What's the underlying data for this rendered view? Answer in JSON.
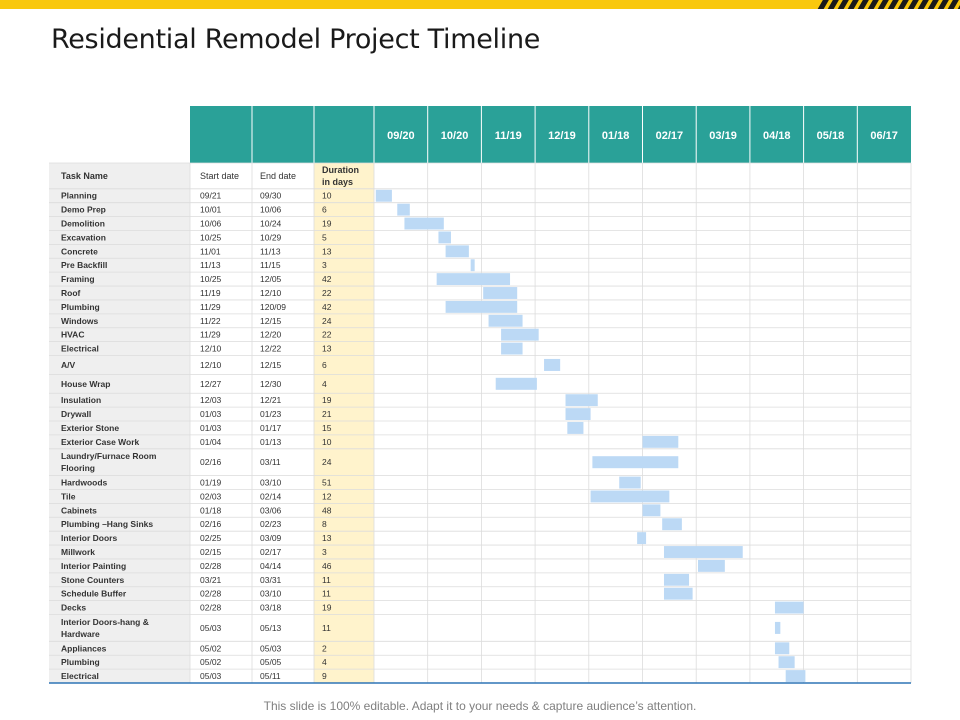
{
  "page": {
    "title": "Residential Remodel Project Timeline",
    "footer": "This slide is 100% editable. Adapt it to your needs & capture audience’s attention."
  },
  "colors": {
    "accent_yellow": "#f9c80e",
    "header_teal": "#2aa198",
    "bar_blue": "#bcd9f5",
    "duration_bg": "#fff3cc",
    "task_bg": "#efefef",
    "border_blue": "#2e75b6"
  },
  "chart_data": {
    "type": "gantt",
    "title": "Residential Remodel Project Timeline",
    "table_headers": {
      "task": "Task Name",
      "start": "Start date",
      "end": "End date",
      "duration": "Duration in days"
    },
    "timeline_columns": [
      "09/20",
      "10/20",
      "11/19",
      "12/19",
      "01/18",
      "02/17",
      "03/19",
      "04/18",
      "05/18",
      "06/17"
    ],
    "tasks": [
      {
        "name": "Planning",
        "start": "09/21",
        "end": "09/30",
        "duration": "10"
      },
      {
        "name": "Demo Prep",
        "start": "10/01",
        "end": "10/06",
        "duration": "6"
      },
      {
        "name": "Demolition",
        "start": "10/06",
        "end": "10/24",
        "duration": "19"
      },
      {
        "name": "Excavation",
        "start": "10/25",
        "end": "10/29",
        "duration": "5"
      },
      {
        "name": "Concrete",
        "start": "11/01",
        "end": "11/13",
        "duration": "13"
      },
      {
        "name": "Pre Backfill",
        "start": "11/13",
        "end": "11/15",
        "duration": "3"
      },
      {
        "name": "Framing",
        "start": "10/25",
        "end": "12/05",
        "duration": "42"
      },
      {
        "name": "Roof",
        "start": "11/19",
        "end": "12/10",
        "duration": "22"
      },
      {
        "name": "Plumbing",
        "start": "11/29",
        "end": "120/09",
        "duration": "42"
      },
      {
        "name": "Windows",
        "start": "11/22",
        "end": "12/15",
        "duration": "24"
      },
      {
        "name": "HVAC",
        "start": "11/29",
        "end": "12/20",
        "duration": "22"
      },
      {
        "name": "Electrical",
        "start": "12/10",
        "end": "12/22",
        "duration": "13"
      },
      {
        "name": "A/V",
        "start": "12/10",
        "end": "12/15",
        "duration": "6"
      },
      {
        "name": "House Wrap",
        "start": "12/27",
        "end": "12/30",
        "duration": "4"
      },
      {
        "name": "Insulation",
        "start": "12/03",
        "end": "12/21",
        "duration": "19"
      },
      {
        "name": "Drywall",
        "start": "01/03",
        "end": "01/23",
        "duration": "21"
      },
      {
        "name": "Exterior Stone",
        "start": "01/03",
        "end": "01/17",
        "duration": "15"
      },
      {
        "name": "Exterior Case Work",
        "start": "01/04",
        "end": "01/13",
        "duration": "10"
      },
      {
        "name": "Laundry/Furnace Room Flooring",
        "start": "02/16",
        "end": "03/11",
        "duration": "24"
      },
      {
        "name": "Hardwoods",
        "start": "01/19",
        "end": "03/10",
        "duration": "51"
      },
      {
        "name": "Tile",
        "start": "02/03",
        "end": "02/14",
        "duration": "12"
      },
      {
        "name": "Cabinets",
        "start": "01/18",
        "end": "03/06",
        "duration": "48"
      },
      {
        "name": "Plumbing –Hang Sinks",
        "start": "02/16",
        "end": "02/23",
        "duration": "8"
      },
      {
        "name": "Interior Doors",
        "start": "02/25",
        "end": "03/09",
        "duration": "13"
      },
      {
        "name": "Millwork",
        "start": "02/15",
        "end": "02/17",
        "duration": "3"
      },
      {
        "name": "Interior Painting",
        "start": "02/28",
        "end": "04/14",
        "duration": "46"
      },
      {
        "name": "Stone Counters",
        "start": "03/21",
        "end": "03/31",
        "duration": "11"
      },
      {
        "name": "Schedule Buffer",
        "start": "02/28",
        "end": "03/10",
        "duration": "11"
      },
      {
        "name": "Decks",
        "start": "02/28",
        "end": "03/18",
        "duration": "19"
      },
      {
        "name": "Interior Doors-hang & Hardware",
        "start": "05/03",
        "end": "05/13",
        "duration": "11"
      },
      {
        "name": "Appliances",
        "start": "05/02",
        "duration": "2",
        "end": "05/03"
      },
      {
        "name": "Plumbing",
        "start": "05/02",
        "end": "05/05",
        "duration": "4"
      },
      {
        "name": "Electrical",
        "start": "05/03",
        "end": "05/11",
        "duration": "9"
      }
    ],
    "bars": [
      {
        "start": "09/21",
        "end": "09/30"
      },
      {
        "start": "10/03",
        "end": "10/10"
      },
      {
        "start": "10/07",
        "end": "10/29"
      },
      {
        "start": "10/26",
        "end": "11/02"
      },
      {
        "start": "10/30",
        "end": "11/12"
      },
      {
        "start": "11/13",
        "end": "11/15"
      },
      {
        "start": "10/25",
        "end": "12/05"
      },
      {
        "start": "11/20",
        "end": "12/09"
      },
      {
        "start": "10/30",
        "end": "12/09"
      },
      {
        "start": "11/23",
        "end": "12/12"
      },
      {
        "start": "11/30",
        "end": "12/21"
      },
      {
        "start": "11/30",
        "end": "12/12"
      },
      {
        "start": "12/24",
        "end": "01/02"
      },
      {
        "start": "11/27",
        "end": "12/20"
      },
      {
        "start": "01/05",
        "end": "01/23"
      },
      {
        "start": "01/05",
        "end": "01/19"
      },
      {
        "start": "01/06",
        "end": "01/15"
      },
      {
        "start": "02/17",
        "end": "03/09"
      },
      {
        "start": "01/20",
        "end": "03/09"
      },
      {
        "start": "02/04",
        "end": "02/16"
      },
      {
        "start": "01/19",
        "end": "03/04"
      },
      {
        "start": "02/17",
        "end": "02/27"
      },
      {
        "start": "02/28",
        "end": "03/11"
      },
      {
        "start": "02/14",
        "end": "02/19"
      },
      {
        "start": "03/01",
        "end": "04/14"
      },
      {
        "start": "03/20",
        "end": "04/04"
      },
      {
        "start": "03/01",
        "end": "03/15"
      },
      {
        "start": "03/01",
        "end": "03/17"
      },
      {
        "start": "05/02",
        "end": "05/18"
      },
      {
        "start": "05/02",
        "end": "05/05"
      },
      {
        "start": "05/02",
        "end": "05/10"
      },
      {
        "start": "05/04",
        "end": "05/13"
      },
      {
        "start": "05/08",
        "end": "05/19"
      }
    ]
  }
}
